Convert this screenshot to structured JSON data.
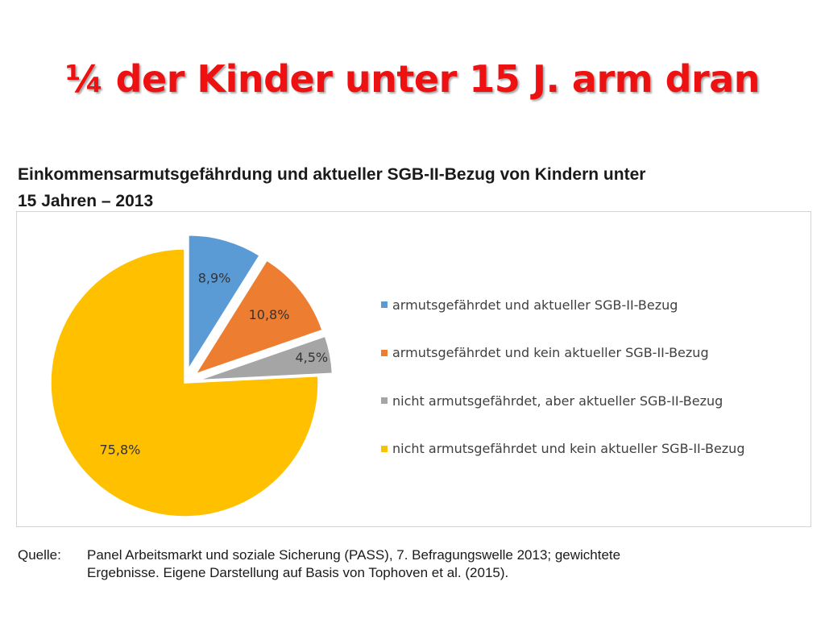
{
  "slide": {
    "title": "¼ der Kinder unter 15 J. arm dran"
  },
  "chart_heading": {
    "line1": "Einkommensarmutsgefährdung und aktueller SGB-II-Bezug von Kindern unter",
    "line2": "15 Jahren – 2013"
  },
  "chart_data": {
    "type": "pie",
    "title": "Einkommensarmutsgefährdung und aktueller SGB-II-Bezug von Kindern unter 15 Jahren – 2013",
    "slices": [
      {
        "label": "armutsgefährdet und aktueller SGB-II-Bezug",
        "value": 8.9,
        "display": "8,9%",
        "color": "#5b9bd5",
        "exploded": true
      },
      {
        "label": "armutsgefährdet und kein aktueller SGB-II-Bezug",
        "value": 10.8,
        "display": "10,8%",
        "color": "#ed7d31",
        "exploded": true
      },
      {
        "label": "nicht armutsgefährdet, aber aktueller SGB-II-Bezug",
        "value": 4.5,
        "display": "4,5%",
        "color": "#a5a5a5",
        "exploded": true
      },
      {
        "label": "nicht armutsgefährdet und kein aktueller SGB-II-Bezug",
        "value": 75.8,
        "display": "75,8%",
        "color": "#ffc000",
        "exploded": false
      }
    ],
    "legend_position": "right"
  },
  "source": {
    "label": "Quelle:",
    "text_line1": "Panel Arbeitsmarkt und soziale Sicherung (PASS), 7. Befragungswelle 2013; gewichtete",
    "text_line2": "Ergebnisse. Eigene Darstellung auf Basis von Tophoven et al. (2015)."
  }
}
